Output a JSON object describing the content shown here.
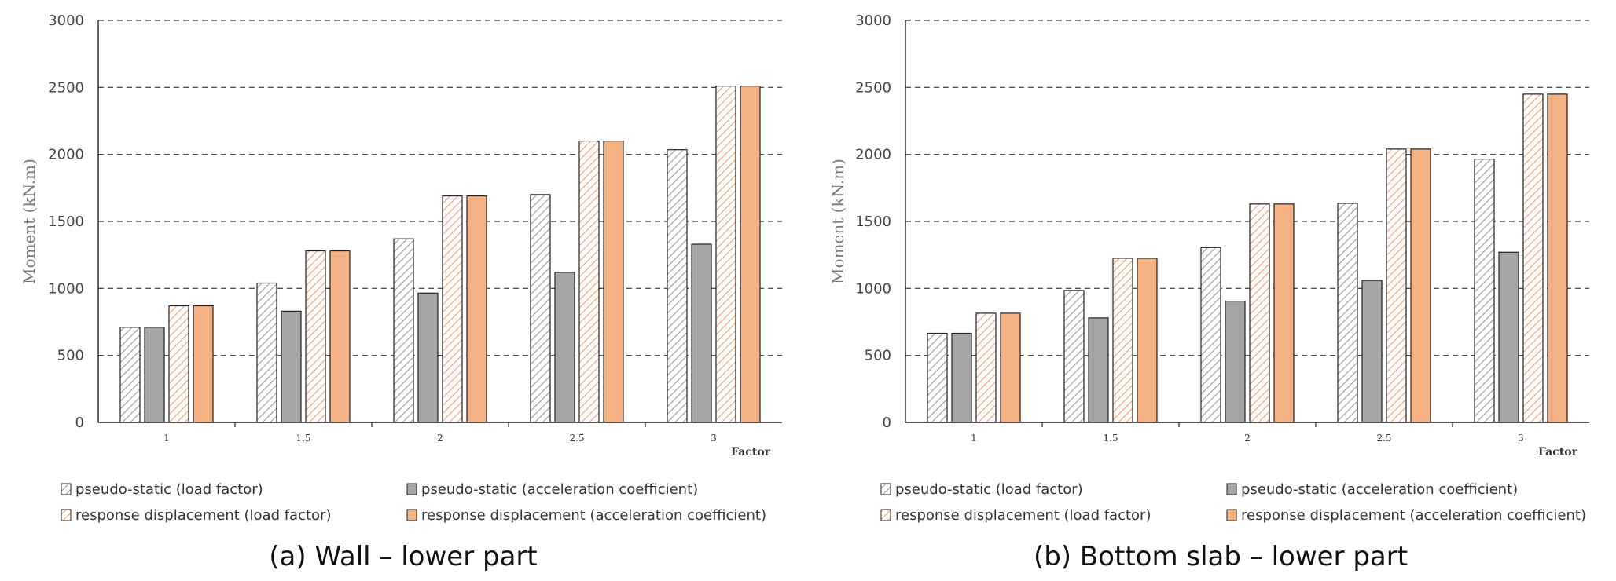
{
  "colors": {
    "hatch_gray": "#9a9a9a",
    "solid_gray": "#a6a6a6",
    "hatch_orange": "#f0a070",
    "solid_orange": "#f4b183",
    "bar_stroke": "#222222",
    "grid": "#333333"
  },
  "legend": [
    {
      "label": "pseudo-static (load factor)",
      "style": "hatch_gray"
    },
    {
      "label": "pseudo-static (acceleration coefficient)",
      "style": "solid_gray"
    },
    {
      "label": "response displacement (load factor)",
      "style": "hatch_orange"
    },
    {
      "label": "response displacement (acceleration coefficient)",
      "style": "solid_orange"
    }
  ],
  "chart_data": [
    {
      "type": "bar",
      "caption": "(a) Wall – lower part",
      "categories": [
        "1",
        "1.5",
        "2",
        "2.5",
        "3"
      ],
      "xlabel": "Factor",
      "ylabel": "Moment (kN.m)",
      "ylim": [
        0,
        3000
      ],
      "yticks": [
        "0",
        "500",
        "1000",
        "1500",
        "2000",
        "2500",
        "3000"
      ],
      "series": [
        {
          "name": "pseudo-static (load factor)",
          "values": [
            710,
            1040,
            1370,
            1700,
            2035
          ]
        },
        {
          "name": "pseudo-static (acceleration coefficient)",
          "values": [
            710,
            830,
            965,
            1120,
            1330
          ]
        },
        {
          "name": "response displacement (load factor)",
          "values": [
            870,
            1280,
            1690,
            2100,
            2510
          ]
        },
        {
          "name": "response displacement (acceleration coefficient)",
          "values": [
            870,
            1280,
            1690,
            2100,
            2510
          ]
        }
      ]
    },
    {
      "type": "bar",
      "caption": "(b) Bottom slab – lower part",
      "categories": [
        "1",
        "1.5",
        "2",
        "2.5",
        "3"
      ],
      "xlabel": "Factor",
      "ylabel": "Moment (kN.m)",
      "ylim": [
        0,
        3000
      ],
      "yticks": [
        "0",
        "500",
        "1000",
        "1500",
        "2000",
        "2500",
        "3000"
      ],
      "series": [
        {
          "name": "pseudo-static (load factor)",
          "values": [
            665,
            985,
            1305,
            1635,
            1965
          ]
        },
        {
          "name": "pseudo-static (acceleration coefficient)",
          "values": [
            665,
            780,
            905,
            1060,
            1270
          ]
        },
        {
          "name": "response displacement (load factor)",
          "values": [
            815,
            1225,
            1630,
            2040,
            2450
          ]
        },
        {
          "name": "response displacement (acceleration coefficient)",
          "values": [
            815,
            1225,
            1630,
            2040,
            2450
          ]
        }
      ]
    }
  ]
}
